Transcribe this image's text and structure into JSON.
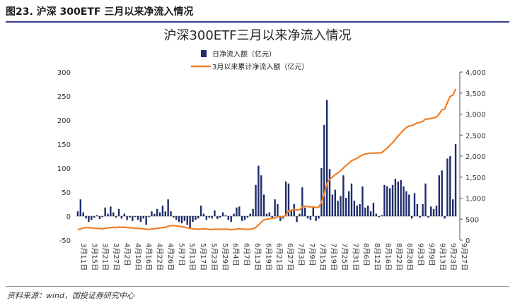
{
  "figure_caption": "图23. 沪深 300ETF 三月以来净流入情况",
  "source_note": "资料来源：wind，国投证券研究中心",
  "chart_data": {
    "type": "bar+line",
    "title": "沪深300ETF三月以来净流入情况",
    "legend": [
      "日净流入额（亿元）",
      "3月以来累计净流入额（亿元）"
    ],
    "legend_position": "top-center",
    "left_axis": {
      "range": [
        -50,
        300
      ],
      "ticks": [
        "300",
        "250",
        "200",
        "150",
        "100",
        "50",
        "0",
        "-50"
      ],
      "tick_values": [
        300,
        250,
        200,
        150,
        100,
        50,
        0,
        -50
      ]
    },
    "right_axis": {
      "range": [
        0,
        4000
      ],
      "ticks": [
        "4,000",
        "3,500",
        "3,000",
        "2,500",
        "2,000",
        "1,500",
        "1,000",
        "500",
        "0"
      ],
      "tick_values": [
        4000,
        3500,
        3000,
        2500,
        2000,
        1500,
        1000,
        500,
        0
      ]
    },
    "x_labels": [
      "3月11日",
      "3月15日",
      "3月21日",
      "3月27日",
      "4月2日",
      "4月10日",
      "4月16日",
      "4月22日",
      "4月26日",
      "5月7日",
      "5月13日",
      "5月17日",
      "5月23日",
      "5月29日",
      "6月4日",
      "6月7日",
      "6月13日",
      "6月19日",
      "6月21日",
      "6月27日",
      "7月3日",
      "7月9日",
      "7月15日",
      "7月19日",
      "7月25日",
      "7月31日",
      "8月6日",
      "8月12日",
      "8月16日",
      "8月22日",
      "8月28日",
      "9月3日",
      "9月9日",
      "9月13日",
      "9月23日",
      "9月27日"
    ],
    "series": [
      {
        "name": "日净流入额（亿元）",
        "type": "bar",
        "axis": "left",
        "color": "#1f2d6b",
        "values": [
          10,
          35,
          8,
          -5,
          -12,
          -8,
          -3,
          2,
          -6,
          -2,
          18,
          5,
          20,
          8,
          -3,
          15,
          -5,
          5,
          -8,
          -3,
          -10,
          -2,
          -8,
          -12,
          -5,
          -18,
          -2,
          10,
          5,
          15,
          8,
          22,
          10,
          35,
          10,
          -3,
          -8,
          -12,
          -15,
          -10,
          -18,
          -25,
          -12,
          -8,
          -5,
          22,
          5,
          -8,
          -3,
          -5,
          12,
          -6,
          -3,
          8,
          2,
          -8,
          -12,
          5,
          18,
          20,
          -10,
          -8,
          -3,
          5,
          15,
          65,
          105,
          85,
          45,
          5,
          8,
          -3,
          35,
          25,
          -10,
          -5,
          72,
          68,
          12,
          25,
          -12,
          5,
          60,
          18,
          -5,
          -8,
          20,
          -10,
          -5,
          100,
          190,
          242,
          98,
          45,
          55,
          32,
          42,
          85,
          38,
          52,
          68,
          32,
          22,
          25,
          62,
          18,
          22,
          10,
          28,
          5,
          -2,
          2,
          65,
          62,
          58,
          65,
          78,
          72,
          75,
          62,
          52,
          45,
          -5,
          48,
          25,
          -3,
          25,
          68,
          -3,
          20,
          15,
          22,
          85,
          95,
          -5,
          120,
          125,
          35,
          150
        ]
      },
      {
        "name": "3月以来累计净流入额（亿元）",
        "type": "line",
        "axis": "right",
        "color": "#f07f2a",
        "values": [
          250,
          265,
          290,
          300,
          295,
          290,
          285,
          280,
          275,
          270,
          285,
          290,
          300,
          305,
          300,
          310,
          305,
          310,
          300,
          295,
          290,
          285,
          280,
          275,
          270,
          260,
          255,
          265,
          270,
          285,
          290,
          300,
          310,
          330,
          345,
          350,
          340,
          330,
          320,
          310,
          295,
          280,
          270,
          265,
          260,
          265,
          270,
          265,
          255,
          255,
          260,
          260,
          258,
          260,
          262,
          258,
          250,
          255,
          265,
          270,
          265,
          260,
          258,
          260,
          270,
          300,
          360,
          430,
          480,
          500,
          510,
          520,
          530,
          560,
          560,
          555,
          600,
          700,
          710,
          730,
          720,
          720,
          790,
          810,
          800,
          790,
          790,
          780,
          780,
          900,
          1090,
          1350,
          1450,
          1500,
          1560,
          1600,
          1650,
          1720,
          1780,
          1830,
          1890,
          1920,
          1950,
          1990,
          2030,
          2050,
          2060,
          2070,
          2070,
          2075,
          2075,
          2080,
          2140,
          2190,
          2260,
          2320,
          2400,
          2480,
          2550,
          2620,
          2680,
          2720,
          2725,
          2760,
          2790,
          2800,
          2830,
          2880,
          2880,
          2900,
          2910,
          2930,
          3000,
          3100,
          3120,
          3280,
          3420,
          3450,
          3600
        ]
      }
    ]
  }
}
